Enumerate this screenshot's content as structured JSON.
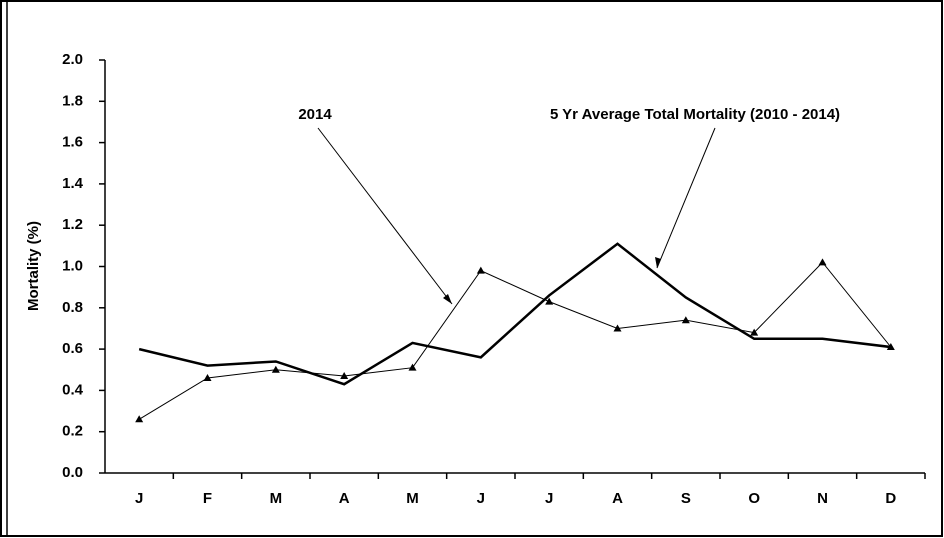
{
  "chart_data": {
    "type": "line",
    "y_label": "Mortality (%)",
    "categories": [
      "J",
      "F",
      "M",
      "A",
      "M",
      "J",
      "J",
      "A",
      "S",
      "O",
      "N",
      "D"
    ],
    "series": [
      {
        "name": "2014",
        "color": "#000000",
        "marker": "triangle",
        "values": [
          0.26,
          0.46,
          0.5,
          0.47,
          0.51,
          0.98,
          0.83,
          0.7,
          0.74,
          0.68,
          1.02,
          0.61
        ]
      },
      {
        "name": "5 Yr Average Total Mortality (2010 - 2014)",
        "color": "#000000",
        "values": [
          0.6,
          0.52,
          0.54,
          0.43,
          0.63,
          0.56,
          0.86,
          1.11,
          0.85,
          0.65,
          0.65,
          0.61
        ]
      }
    ],
    "ylim": [
      0,
      2
    ],
    "yticks": [
      {
        "value": 0,
        "label": "0.0"
      },
      {
        "value": 0.2,
        "label": "0.2"
      },
      {
        "value": 0.4,
        "label": "0.4"
      },
      {
        "value": 0.6,
        "label": "0.6"
      },
      {
        "value": 0.8,
        "label": "0.8"
      },
      {
        "value": 1,
        "label": "1.0"
      },
      {
        "value": 1.2,
        "label": "1.2"
      },
      {
        "value": 1.4,
        "label": "1.4"
      },
      {
        "value": 1.6,
        "label": "1.6"
      },
      {
        "value": 1.8,
        "label": "1.8"
      },
      {
        "value": 2,
        "label": "2.0"
      }
    ],
    "grid": false
  }
}
